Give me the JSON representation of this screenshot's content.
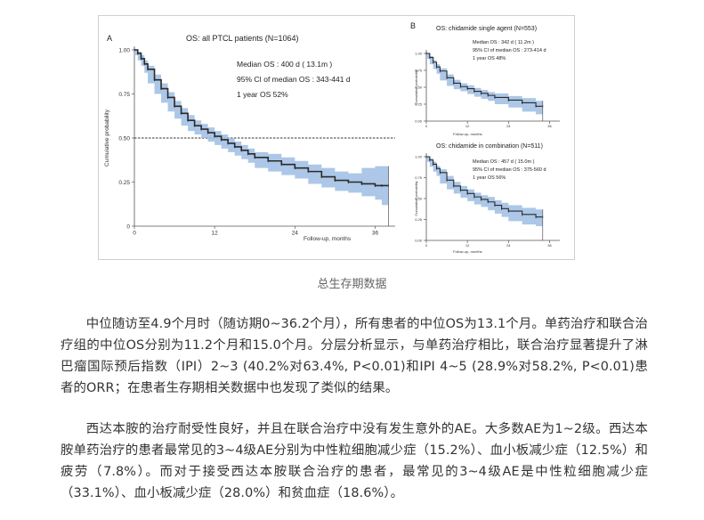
{
  "chart_data": [
    {
      "type": "line",
      "panel": "A",
      "title": "OS: all PTCL patients (N=1064)",
      "xlabel": "Follow-up, months",
      "ylabel": "Cumulative probability",
      "xlim": [
        0,
        39
      ],
      "ylim": [
        0,
        1.0
      ],
      "x_ticks": [
        0,
        12,
        24,
        36
      ],
      "y_ticks": [
        0,
        0.25,
        0.5,
        0.75,
        1.0
      ],
      "y_tick_labels": [
        "0",
        "0.25",
        "0.50",
        "0.75",
        "1.00"
      ],
      "reference_line": 0.5,
      "annotations": [
        "Median OS :  400 d ( 13.1m )",
        "95% CI of median OS :  343-441 d",
        "1 year OS 52%"
      ],
      "series": [
        {
          "x": [
            0,
            0.5,
            1,
            1.5,
            2,
            3,
            4,
            5,
            6,
            7,
            8,
            9,
            10,
            11,
            12,
            13,
            14,
            15,
            16,
            17,
            18,
            20,
            22,
            24,
            26,
            28,
            30,
            32,
            34,
            36,
            37,
            38
          ],
          "y": [
            1.0,
            0.98,
            0.95,
            0.92,
            0.89,
            0.83,
            0.78,
            0.73,
            0.68,
            0.64,
            0.6,
            0.57,
            0.55,
            0.53,
            0.51,
            0.49,
            0.47,
            0.45,
            0.43,
            0.41,
            0.39,
            0.37,
            0.35,
            0.33,
            0.31,
            0.28,
            0.26,
            0.25,
            0.24,
            0.23,
            0.23,
            0.23
          ],
          "ci_lower": [
            1.0,
            0.97,
            0.94,
            0.91,
            0.87,
            0.81,
            0.75,
            0.7,
            0.65,
            0.61,
            0.57,
            0.54,
            0.52,
            0.5,
            0.48,
            0.46,
            0.44,
            0.42,
            0.4,
            0.38,
            0.36,
            0.33,
            0.31,
            0.29,
            0.27,
            0.24,
            0.22,
            0.2,
            0.19,
            0.17,
            0.15,
            0.12
          ],
          "ci_upper": [
            1.0,
            0.99,
            0.97,
            0.94,
            0.91,
            0.86,
            0.81,
            0.76,
            0.71,
            0.67,
            0.63,
            0.6,
            0.58,
            0.56,
            0.54,
            0.52,
            0.5,
            0.48,
            0.46,
            0.44,
            0.42,
            0.41,
            0.39,
            0.37,
            0.35,
            0.33,
            0.31,
            0.3,
            0.33,
            0.34,
            0.34,
            0.34
          ]
        }
      ]
    },
    {
      "type": "line",
      "panel": "B",
      "title": "OS: chidamide single agent (N=553)",
      "xlabel": "Follow-up, months",
      "ylabel": "Cumulative probability",
      "xlim": [
        0,
        39
      ],
      "ylim": [
        0,
        1.0
      ],
      "x_ticks": [
        0,
        12,
        24,
        36
      ],
      "y_ticks": [
        0,
        0.25,
        0.5,
        0.75,
        1.0
      ],
      "y_tick_labels": [
        "0.00",
        "0.25",
        "0.50",
        "0.75",
        "1.00"
      ],
      "annotations": [
        "Median OS :  342 d ( 11.2m )",
        "95% CI of median OS :  273-414 d",
        "1 year OS 48%"
      ],
      "series": [
        {
          "x": [
            0,
            1,
            2,
            3,
            4,
            6,
            8,
            10,
            12,
            14,
            16,
            18,
            20,
            24,
            28,
            32,
            34
          ],
          "y": [
            1.0,
            0.94,
            0.87,
            0.8,
            0.74,
            0.64,
            0.56,
            0.51,
            0.48,
            0.44,
            0.41,
            0.38,
            0.35,
            0.31,
            0.27,
            0.22,
            0.22
          ],
          "ci_lower": [
            1.0,
            0.92,
            0.84,
            0.77,
            0.7,
            0.6,
            0.52,
            0.47,
            0.44,
            0.4,
            0.36,
            0.33,
            0.3,
            0.25,
            0.2,
            0.14,
            0.1
          ],
          "ci_upper": [
            1.0,
            0.96,
            0.9,
            0.84,
            0.78,
            0.69,
            0.61,
            0.56,
            0.53,
            0.49,
            0.46,
            0.43,
            0.41,
            0.37,
            0.34,
            0.3,
            0.3
          ]
        }
      ]
    },
    {
      "type": "line",
      "panel": "B",
      "title": "OS: chidamide in combination (N=511)",
      "xlabel": "Follow-up, months",
      "ylabel": "Cumulative probability",
      "xlim": [
        0,
        39
      ],
      "ylim": [
        0,
        1.0
      ],
      "x_ticks": [
        0,
        12,
        24,
        36
      ],
      "y_ticks": [
        0,
        0.25,
        0.5,
        0.75,
        1.0
      ],
      "y_tick_labels": [
        "0.00",
        "0.25",
        "0.50",
        "0.75",
        "1.00"
      ],
      "annotations": [
        "Median OS :  457 d ( 15.0m )",
        "95% CI of median OS :  375-560 d",
        "1 year OS 56%"
      ],
      "series": [
        {
          "x": [
            0,
            1,
            2,
            3,
            4,
            6,
            8,
            10,
            12,
            14,
            16,
            18,
            20,
            22,
            24,
            28,
            32,
            34
          ],
          "y": [
            1.0,
            0.96,
            0.91,
            0.86,
            0.81,
            0.72,
            0.65,
            0.6,
            0.56,
            0.52,
            0.49,
            0.46,
            0.42,
            0.38,
            0.35,
            0.31,
            0.28,
            0.28
          ],
          "ci_lower": [
            1.0,
            0.94,
            0.88,
            0.82,
            0.77,
            0.68,
            0.61,
            0.56,
            0.51,
            0.47,
            0.43,
            0.4,
            0.36,
            0.32,
            0.28,
            0.23,
            0.19,
            0.17
          ],
          "ci_upper": [
            1.0,
            0.98,
            0.94,
            0.89,
            0.85,
            0.77,
            0.7,
            0.65,
            0.61,
            0.57,
            0.54,
            0.52,
            0.48,
            0.45,
            0.42,
            0.39,
            0.37,
            0.37
          ]
        }
      ]
    }
  ],
  "panel_labels": {
    "a": "A",
    "b": "B"
  },
  "style": {
    "line_color": "#2a2a2a",
    "ci_color": "#9dbde3",
    "ref_line_color": "#333333"
  },
  "caption": "总生存期数据",
  "paragraphs": [
    "中位随访至4.9个月时（随访期0~36.2个月），所有患者的中位OS为13.1个月。单药治疗和联合治疗组的中位OS分别为11.2个月和15.0个月。分层分析显示，与单药治疗相比，联合治疗显著提升了淋巴瘤国际预后指数（IPI）2~3 (40.2%对63.4%, P<0.01)和IPI 4~5 (28.9%对58.2%, P<0.01)患者的ORR；在患者生存期相关数据中也发现了类似的结果。",
    "西达本胺的治疗耐受性良好，并且在联合治疗中没有发生意外的AE。大多数AE为1~2级。西达本胺单药治疗的患者最常见的3~4级AE分别为中性粒细胞减少症（15.2%）、血小板减少症（12.5%）和疲劳（7.8%）。而对于接受西达本胺联合治疗的患者，最常见的3~4级AE是中性粒细胞减少症（33.1%）、血小板减少症（28.0%）和贫血症（18.6%）。"
  ]
}
